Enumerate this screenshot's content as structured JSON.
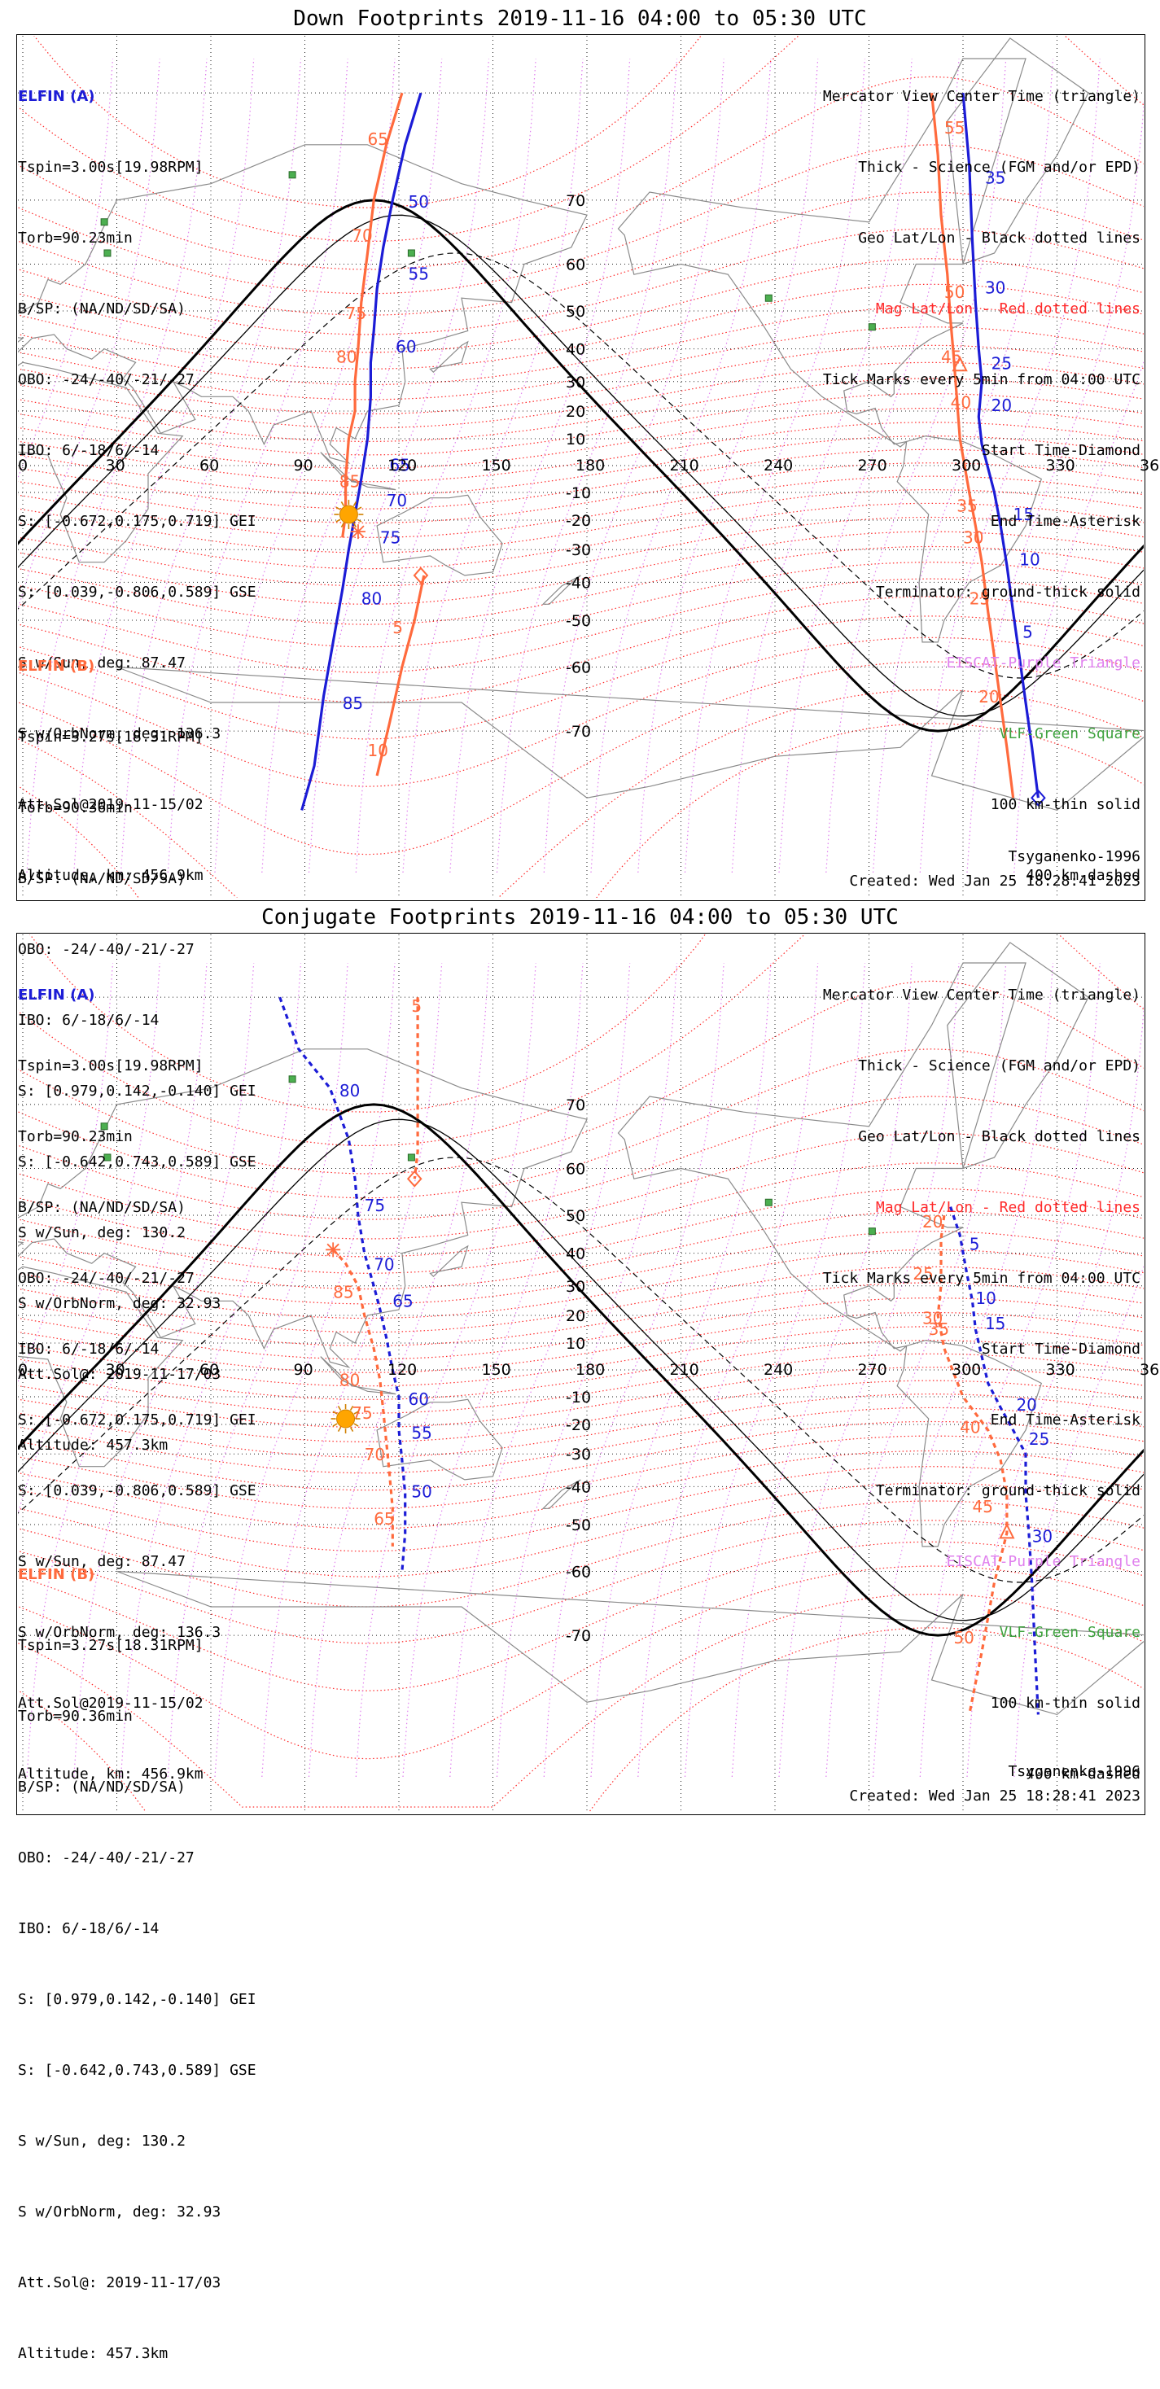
{
  "colors": {
    "elfin_a": "#1c1cd6",
    "elfin_b": "#ff6a3d",
    "geo_grid": "#222222",
    "mag_grid": "#ff2a2a",
    "eiscat": "#e080ee",
    "vlf": "#3fa23f",
    "sun": "#ffa500"
  },
  "panels": [
    {
      "title": "Down Footprints 2019-11-16 04:00 to 05:30 UTC",
      "elfin_a": {
        "header": "ELFIN (A)",
        "lines": [
          "Tspin=3.00s[19.98RPM]",
          "Torb=90.23min",
          "B/SP: (NA/ND/SD/SA)",
          "OBO: -24/-40/-21/-27",
          "IBO: 6/-18/6/-14",
          "S: [-0.672,0.175,0.719] GEI",
          "S: [0.039,-0.806,0.589] GSE",
          "S w/Sun, deg: 87.47",
          "S w/OrbNorm, deg: 136.3",
          "Att.Sol@2019-11-15/02",
          "Altitude, km: 456.9km"
        ]
      },
      "elfin_b": {
        "header": "ELFIN (B)",
        "lines": [
          "Tspin=3.27s[18.31RPM]",
          "Torb=90.36min",
          "B/SP: (NA/ND/SD/SA)",
          "OBO: -24/-40/-21/-27",
          "IBO: 6/-18/6/-14",
          "S: [0.979,0.142,-0.140] GEI",
          "S: [-0.642,0.743,0.589] GSE",
          "S w/Sun, deg: 130.2",
          "S w/OrbNorm, deg: 32.93",
          "Att.Sol@: 2019-11-17/03",
          "Altitude: 457.3km"
        ]
      },
      "legend": [
        "Mercator View Center Time (triangle)",
        "Thick - Science (FGM and/or EPD)",
        "Geo Lat/Lon - Black dotted lines",
        "Mag Lat/Lon - Red dotted lines",
        "Tick Marks every 5min from 04:00 UTC",
        "Start Time-Diamond",
        "End Time-Asterisk",
        "Terminator: ground-thick solid",
        "EISCAT-Purple Triangle",
        "VLF-Green Square",
        "100 km-thin solid",
        "400 km-dashed"
      ],
      "model": "Tsyganenko-1996",
      "created": "Created: Wed Jan 25 18:28:41 2023",
      "map": {
        "lon_ticks": [
          "0",
          "30",
          "60",
          "90",
          "120",
          "150",
          "180",
          "210",
          "240",
          "270",
          "300",
          "330",
          "360"
        ],
        "lat_ticks": [
          "70",
          "60",
          "50",
          "40",
          "30",
          "20",
          "10",
          "-10",
          "-20",
          "-30",
          "-40",
          "-50",
          "-60",
          "-70"
        ]
      },
      "track_a": {
        "style": "solid",
        "points": [
          [
            127,
            80
          ],
          [
            122,
            76
          ],
          [
            118,
            70
          ],
          [
            115,
            63
          ],
          [
            113,
            55
          ],
          [
            112,
            45
          ],
          [
            111,
            36
          ],
          [
            111,
            25
          ],
          [
            110,
            10
          ],
          [
            108,
            -5
          ],
          [
            106,
            -18
          ],
          [
            104,
            -30
          ],
          [
            102,
            -42
          ],
          [
            99,
            -55
          ],
          [
            96,
            -65
          ],
          [
            93,
            -74
          ],
          [
            89,
            -78
          ]
        ],
        "labels": [
          {
            "t": "50",
            "lon": 123,
            "lat": 69
          },
          {
            "t": "55",
            "lon": 123,
            "lat": 57
          },
          {
            "t": "60",
            "lon": 119,
            "lat": 39
          },
          {
            "t": "65",
            "lon": 117,
            "lat": -2
          },
          {
            "t": "70",
            "lon": 116,
            "lat": -15
          },
          {
            "t": "75",
            "lon": 114,
            "lat": -28
          },
          {
            "t": "80",
            "lon": 108,
            "lat": -46
          },
          {
            "t": "85",
            "lon": 102,
            "lat": -67
          }
        ]
      },
      "track_b": {
        "style": "solid",
        "points": [
          [
            121,
            80
          ],
          [
            116,
            76
          ],
          [
            112,
            70
          ],
          [
            110,
            62
          ],
          [
            108,
            52
          ],
          [
            107,
            40
          ],
          [
            106,
            30
          ],
          [
            106,
            20
          ],
          [
            104,
            10
          ],
          [
            103,
            -5
          ],
          [
            103,
            -12
          ],
          [
            103,
            -18
          ],
          [
            102,
            -26
          ]
        ],
        "labels": [
          {
            "t": "65",
            "lon": 110,
            "lat": 76
          },
          {
            "t": "70",
            "lon": 105,
            "lat": 64
          },
          {
            "t": "75",
            "lon": 103,
            "lat": 48
          },
          {
            "t": "80",
            "lon": 100,
            "lat": 36
          },
          {
            "t": "85",
            "lon": 101,
            "lat": -8
          }
        ]
      },
      "track_b2": {
        "style": "solid",
        "points": [
          [
            128,
            -38
          ],
          [
            125,
            -50
          ],
          [
            121,
            -60
          ],
          [
            117,
            -69
          ],
          [
            113,
            -75
          ]
        ],
        "labels": [
          {
            "t": "5",
            "lon": 118,
            "lat": -53
          },
          {
            "t": "10",
            "lon": 110,
            "lat": -73
          }
        ]
      },
      "track_a_east": {
        "style": "solid",
        "points": [
          [
            300,
            80
          ],
          [
            302,
            74
          ],
          [
            303,
            64
          ],
          [
            304,
            52
          ],
          [
            305,
            40
          ],
          [
            306,
            30
          ],
          [
            305,
            18
          ],
          [
            306,
            8
          ],
          [
            310,
            -10
          ],
          [
            312,
            -22
          ],
          [
            314,
            -35
          ],
          [
            316,
            -48
          ],
          [
            318,
            -58
          ],
          [
            320,
            -66
          ],
          [
            322,
            -72
          ],
          [
            324,
            -77
          ]
        ],
        "labels": [
          {
            "t": "35",
            "lon": 307,
            "lat": 72
          },
          {
            "t": "30",
            "lon": 307,
            "lat": 54
          },
          {
            "t": "25",
            "lon": 309,
            "lat": 34
          },
          {
            "t": "20",
            "lon": 309,
            "lat": 20
          },
          {
            "t": "15",
            "lon": 316,
            "lat": -20
          },
          {
            "t": "10",
            "lon": 318,
            "lat": -35
          },
          {
            "t": "5",
            "lon": 319,
            "lat": -54
          }
        ]
      },
      "track_b_east": {
        "style": "solid",
        "points": [
          [
            290,
            80
          ],
          [
            292,
            75
          ],
          [
            293,
            68
          ],
          [
            295,
            58
          ],
          [
            296,
            48
          ],
          [
            297,
            38
          ],
          [
            298,
            25
          ],
          [
            299,
            10
          ],
          [
            302,
            -10
          ],
          [
            304,
            -22
          ],
          [
            306,
            -34
          ],
          [
            308,
            -48
          ],
          [
            310,
            -58
          ],
          [
            312,
            -66
          ],
          [
            314,
            -72
          ],
          [
            316,
            -77
          ]
        ],
        "labels": [
          {
            "t": "55",
            "lon": 294,
            "lat": 77
          },
          {
            "t": "50",
            "lon": 294,
            "lat": 53
          },
          {
            "t": "45",
            "lon": 293,
            "lat": 36
          },
          {
            "t": "40",
            "lon": 296,
            "lat": 21
          },
          {
            "t": "35",
            "lon": 298,
            "lat": -17
          },
          {
            "t": "30",
            "lon": 300,
            "lat": -28
          },
          {
            "t": "25",
            "lon": 302,
            "lat": -46
          },
          {
            "t": "20",
            "lon": 305,
            "lat": -66
          }
        ]
      },
      "start_markers": [
        {
          "lon": 127,
          "lat": -38,
          "track": "b"
        },
        {
          "lon": 324,
          "lat": -77,
          "track": "a"
        }
      ],
      "view_markers": [
        {
          "lon": 299,
          "lat": 35,
          "track": "b"
        }
      ],
      "end_markers": [
        {
          "lon": 107,
          "lat": -24,
          "track": "b"
        }
      ],
      "sun": {
        "lon": 104,
        "lat": -18
      },
      "terminator_shift": 0
    },
    {
      "title": "Conjugate Footprints 2019-11-16 04:00 to 05:30 UTC",
      "elfin_a": {
        "header": "ELFIN (A)",
        "lines": [
          "Tspin=3.00s[19.98RPM]",
          "Torb=90.23min",
          "B/SP: (NA/ND/SD/SA)",
          "OBO: -24/-40/-21/-27",
          "IBO: 6/-18/6/-14",
          "S: [-0.672,0.175,0.719] GEI",
          "S: [0.039,-0.806,0.589] GSE",
          "S w/Sun, deg: 87.47",
          "S w/OrbNorm, deg: 136.3",
          "Att.Sol@2019-11-15/02",
          "Altitude, km: 456.9km"
        ]
      },
      "elfin_b": {
        "header": "ELFIN (B)",
        "lines": [
          "Tspin=3.27s[18.31RPM]",
          "Torb=90.36min",
          "B/SP: (NA/ND/SD/SA)",
          "OBO: -24/-40/-21/-27",
          "IBO: 6/-18/6/-14",
          "S: [0.979,0.142,-0.140] GEI",
          "S: [-0.642,0.743,0.589] GSE",
          "S w/Sun, deg: 130.2",
          "S w/OrbNorm, deg: 32.93",
          "Att.Sol@: 2019-11-17/03",
          "Altitude: 457.3km"
        ]
      },
      "legend": [
        "Mercator View Center Time (triangle)",
        "Thick - Science (FGM and/or EPD)",
        "Geo Lat/Lon - Black dotted lines",
        "Mag Lat/Lon - Red dotted lines",
        "Tick Marks every 5min from 04:00 UTC",
        "Start Time-Diamond",
        "End Time-Asterisk",
        "Terminator: ground-thick solid",
        "EISCAT-Purple Triangle",
        "VLF-Green Square",
        "100 km-thin solid",
        "400 km-dashed"
      ],
      "model": "Tsyganenko-1996",
      "created": "Created: Wed Jan 25 18:28:41 2023",
      "map": {
        "lon_ticks": [
          "0",
          "30",
          "60",
          "90",
          "120",
          "150",
          "180",
          "210",
          "240",
          "270",
          "300",
          "330",
          "360"
        ],
        "lat_ticks": [
          "70",
          "60",
          "50",
          "40",
          "30",
          "20",
          "10",
          "-10",
          "-20",
          "-30",
          "-40",
          "-50",
          "-60",
          "-70"
        ]
      },
      "track_a": {
        "style": "dashed",
        "points": [
          [
            82,
            80
          ],
          [
            88,
            76
          ],
          [
            98,
            72
          ],
          [
            104,
            65
          ],
          [
            106,
            58
          ],
          [
            107,
            50
          ],
          [
            109,
            40
          ],
          [
            112,
            30
          ],
          [
            114,
            22
          ],
          [
            116,
            12
          ],
          [
            118,
            0
          ],
          [
            120,
            -10
          ],
          [
            120,
            -22
          ],
          [
            121,
            -32
          ],
          [
            122,
            -42
          ],
          [
            122,
            -52
          ],
          [
            121,
            -60
          ]
        ],
        "labels": [
          {
            "t": "80",
            "lon": 101,
            "lat": 71
          },
          {
            "t": "75",
            "lon": 109,
            "lat": 51
          },
          {
            "t": "70",
            "lon": 112,
            "lat": 35
          },
          {
            "t": "65",
            "lon": 118,
            "lat": 23
          },
          {
            "t": "60",
            "lon": 123,
            "lat": -13
          },
          {
            "t": "55",
            "lon": 124,
            "lat": -25
          },
          {
            "t": "50",
            "lon": 124,
            "lat": -43
          }
        ]
      },
      "track_b": {
        "style": "dashed",
        "points": [
          [
            99,
            41
          ],
          [
            103,
            37
          ],
          [
            107,
            30
          ],
          [
            109,
            20
          ],
          [
            112,
            8
          ],
          [
            114,
            -4
          ],
          [
            115,
            -15
          ],
          [
            116,
            -26
          ],
          [
            117,
            -36
          ],
          [
            118,
            -46
          ],
          [
            118,
            -55
          ]
        ],
        "labels": [
          {
            "t": "85",
            "lon": 99,
            "lat": 26
          },
          {
            "t": "80",
            "lon": 101,
            "lat": -6
          },
          {
            "t": "75",
            "lon": 105,
            "lat": -18
          },
          {
            "t": "70",
            "lon": 109,
            "lat": -32
          },
          {
            "t": "65",
            "lon": 112,
            "lat": -50
          }
        ]
      },
      "track_b2": {
        "style": "dashed",
        "points": [
          [
            126,
            80
          ],
          [
            126,
            76
          ],
          [
            126,
            72
          ],
          [
            126,
            68
          ],
          [
            126,
            63
          ],
          [
            125,
            58
          ]
        ],
        "labels": [
          {
            "t": "5",
            "lon": 124,
            "lat": 79
          },
          {
            "t": "",
            "lon": 0,
            "lat": 0
          }
        ]
      },
      "track_a_east": {
        "style": "dashed",
        "points": [
          [
            296,
            52
          ],
          [
            299,
            45
          ],
          [
            301,
            35
          ],
          [
            303,
            25
          ],
          [
            304,
            15
          ],
          [
            306,
            5
          ],
          [
            308,
            -5
          ],
          [
            312,
            -14
          ],
          [
            316,
            -22
          ],
          [
            320,
            -30
          ],
          [
            320,
            -42
          ],
          [
            321,
            -52
          ],
          [
            322,
            -62
          ],
          [
            323,
            -72
          ],
          [
            324,
            -78
          ]
        ],
        "labels": [
          {
            "t": "5",
            "lon": 302,
            "lat": 41
          },
          {
            "t": "10",
            "lon": 304,
            "lat": 24
          },
          {
            "t": "15",
            "lon": 307,
            "lat": 15
          },
          {
            "t": "20",
            "lon": 317,
            "lat": -15
          },
          {
            "t": "25",
            "lon": 321,
            "lat": -27
          },
          {
            "t": "30",
            "lon": 322,
            "lat": -54
          }
        ]
      },
      "track_b_east": {
        "style": "dashed",
        "points": [
          [
            294,
            50
          ],
          [
            293,
            44
          ],
          [
            293,
            38
          ],
          [
            293,
            30
          ],
          [
            292,
            20
          ],
          [
            294,
            8
          ],
          [
            300,
            -10
          ],
          [
            308,
            -22
          ],
          [
            312,
            -32
          ],
          [
            314,
            -42
          ],
          [
            314,
            -52
          ],
          [
            310,
            -62
          ],
          [
            306,
            -72
          ],
          [
            302,
            -78
          ]
        ],
        "labels": [
          {
            "t": "20",
            "lon": 287,
            "lat": 47
          },
          {
            "t": "25",
            "lon": 284,
            "lat": 32
          },
          {
            "t": "30",
            "lon": 287,
            "lat": 17
          },
          {
            "t": "35",
            "lon": 289,
            "lat": 13
          },
          {
            "t": "40",
            "lon": 299,
            "lat": -23
          },
          {
            "t": "45",
            "lon": 303,
            "lat": -47
          },
          {
            "t": "50",
            "lon": 297,
            "lat": -71
          }
        ]
      },
      "start_markers": [
        {
          "lon": 125,
          "lat": 58,
          "track": "b"
        }
      ],
      "view_markers": [
        {
          "lon": 314,
          "lat": -52,
          "track": "b"
        }
      ],
      "end_markers": [
        {
          "lon": 99,
          "lat": 41,
          "track": "b"
        }
      ],
      "sun": {
        "lon": 103,
        "lat": -18
      },
      "terminator_shift": 0
    }
  ],
  "vlf_stations": [
    {
      "lon": 86,
      "lat": 73
    },
    {
      "lon": 26,
      "lat": 67
    },
    {
      "lon": 27,
      "lat": 62
    },
    {
      "lon": 124,
      "lat": 62
    },
    {
      "lon": 238,
      "lat": 53
    },
    {
      "lon": 271,
      "lat": 46
    }
  ]
}
